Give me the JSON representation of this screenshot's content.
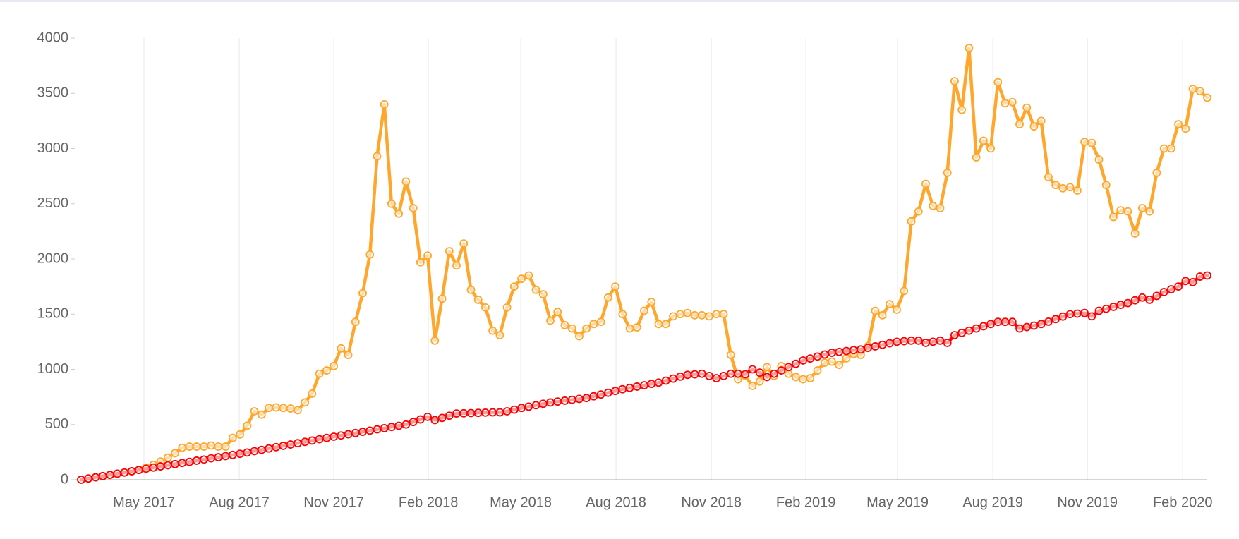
{
  "chart_data": {
    "type": "line",
    "x": [
      0,
      1,
      2,
      3,
      4,
      5,
      6,
      7,
      8,
      9,
      10,
      11,
      12,
      13,
      14,
      15,
      16,
      17,
      18,
      19,
      20,
      21,
      22,
      23,
      24,
      25,
      26,
      27,
      28,
      29,
      30,
      31,
      32,
      33,
      34,
      35,
      36,
      37,
      38,
      39,
      40,
      41,
      42,
      43,
      44,
      45,
      46,
      47,
      48,
      49,
      50,
      51,
      52,
      53,
      54,
      55,
      56,
      57,
      58,
      59,
      60,
      61,
      62,
      63,
      64,
      65,
      66,
      67,
      68,
      69,
      70,
      71,
      72,
      73,
      74,
      75,
      76,
      77,
      78,
      79,
      80,
      81,
      82,
      83,
      84,
      85,
      86,
      87,
      88,
      89,
      90,
      91,
      92,
      93,
      94,
      95,
      96,
      97,
      98,
      99,
      100,
      101,
      102,
      103,
      104,
      105,
      106,
      107,
      108,
      109,
      110,
      111,
      112,
      113,
      114,
      115,
      116,
      117,
      118,
      119,
      120,
      121,
      122,
      123,
      124,
      125,
      126,
      127,
      128,
      129,
      130,
      131,
      132,
      133,
      134,
      135,
      136,
      137,
      138,
      139,
      140,
      141,
      142,
      143,
      144,
      145,
      146,
      147,
      148,
      149,
      150,
      151,
      152,
      153,
      154,
      155,
      156
    ],
    "series": [
      {
        "color": "#ffa62b",
        "values": [
          0,
          12,
          22,
          32,
          42,
          55,
          65,
          75,
          90,
          110,
          135,
          165,
          200,
          240,
          290,
          300,
          300,
          300,
          310,
          300,
          300,
          380,
          410,
          490,
          620,
          590,
          650,
          655,
          650,
          645,
          630,
          700,
          780,
          960,
          990,
          1030,
          1190,
          1130,
          1430,
          1690,
          2040,
          2930,
          3400,
          2500,
          2410,
          2700,
          2460,
          1970,
          2030,
          1260,
          1640,
          2070,
          1940,
          2140,
          1720,
          1630,
          1560,
          1350,
          1310,
          1560,
          1750,
          1820,
          1850,
          1720,
          1680,
          1440,
          1520,
          1400,
          1370,
          1300,
          1370,
          1410,
          1430,
          1650,
          1750,
          1500,
          1370,
          1380,
          1530,
          1610,
          1410,
          1410,
          1480,
          1500,
          1510,
          1490,
          1490,
          1480,
          1500,
          1500,
          1130,
          910,
          940,
          850,
          890,
          1020,
          940,
          1030,
          960,
          930,
          910,
          920,
          990,
          1060,
          1070,
          1040,
          1100,
          1140,
          1130,
          1210,
          1530,
          1490,
          1590,
          1540,
          1710,
          2340,
          2430,
          2680,
          2480,
          2460,
          2780,
          3610,
          3350,
          3910,
          2920,
          3070,
          3000,
          3600,
          3410,
          3420,
          3220,
          3370,
          3200,
          3250,
          2740,
          2670,
          2640,
          2650,
          2620,
          3060,
          3050,
          2900,
          2670,
          2380,
          2440,
          2430,
          2230,
          2460,
          2430,
          2780,
          3000,
          3000,
          3220,
          3180,
          3540,
          3520,
          3460
        ]
      },
      {
        "color": "#ff0000",
        "values": [
          0,
          11,
          22,
          33,
          44,
          55,
          66,
          77,
          88,
          100,
          110,
          121,
          131,
          142,
          152,
          162,
          173,
          183,
          194,
          204,
          214,
          225,
          235,
          247,
          259,
          271,
          283,
          295,
          307,
          319,
          331,
          343,
          355,
          367,
          379,
          390,
          401,
          412,
          423,
          434,
          445,
          456,
          467,
          478,
          489,
          500,
          523,
          546,
          570,
          540,
          560,
          580,
          600,
          602,
          604,
          606,
          608,
          610,
          610,
          620,
          635,
          650,
          662,
          675,
          688,
          700,
          708,
          716,
          724,
          732,
          740,
          756,
          772,
          788,
          804,
          820,
          832,
          844,
          856,
          868,
          880,
          898,
          916,
          934,
          950,
          955,
          960,
          940,
          920,
          940,
          960,
          960,
          955,
          1000,
          970,
          930,
          960,
          990,
          1020,
          1050,
          1080,
          1098,
          1116,
          1134,
          1150,
          1158,
          1166,
          1174,
          1180,
          1194,
          1208,
          1222,
          1236,
          1250,
          1255,
          1260,
          1260,
          1240,
          1250,
          1260,
          1240,
          1310,
          1330,
          1350,
          1370,
          1390,
          1410,
          1430,
          1430,
          1430,
          1370,
          1383,
          1396,
          1410,
          1432,
          1455,
          1478,
          1500,
          1505,
          1510,
          1480,
          1530,
          1548,
          1566,
          1584,
          1600,
          1625,
          1650,
          1630,
          1665,
          1700,
          1725,
          1750,
          1800,
          1790,
          1840,
          1850
        ]
      }
    ],
    "xlim": [
      0,
      156
    ],
    "xticks": [
      {
        "value": 8.7,
        "label": "May 2017"
      },
      {
        "value": 21.9,
        "label": "Aug 2017"
      },
      {
        "value": 35,
        "label": "Nov 2017"
      },
      {
        "value": 48.1,
        "label": "Feb 2018"
      },
      {
        "value": 60.9,
        "label": "May 2018"
      },
      {
        "value": 74.1,
        "label": "Aug 2018"
      },
      {
        "value": 87.3,
        "label": "Nov 2018"
      },
      {
        "value": 100.4,
        "label": "Feb 2019"
      },
      {
        "value": 113.1,
        "label": "May 2019"
      },
      {
        "value": 126.3,
        "label": "Aug 2019"
      },
      {
        "value": 139.4,
        "label": "Nov 2019"
      },
      {
        "value": 152.6,
        "label": "Feb 2020"
      }
    ],
    "ylim": [
      0,
      4000
    ],
    "yticks": [
      0,
      500,
      1000,
      1500,
      2000,
      2500,
      3000,
      3500,
      4000
    ],
    "grid": true
  }
}
